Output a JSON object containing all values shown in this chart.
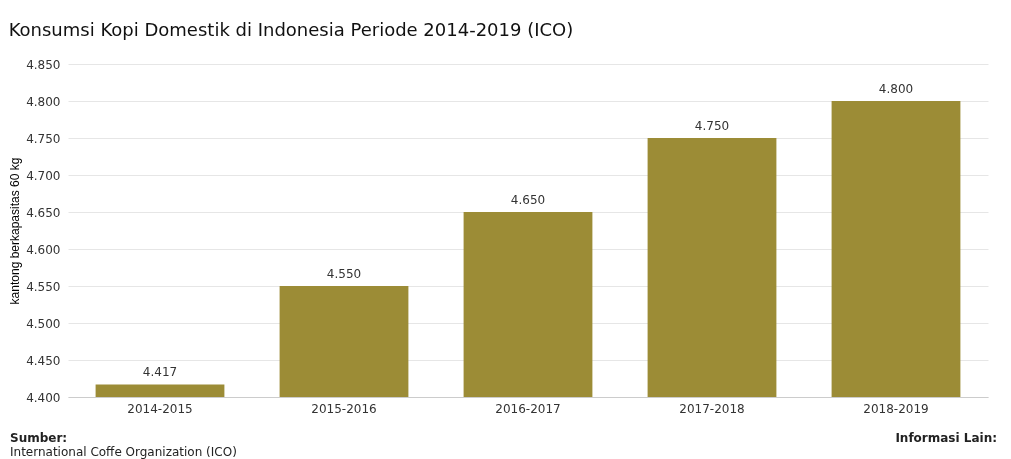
{
  "chart_data": {
    "type": "bar",
    "title": "Konsumsi Kopi Domestik di Indonesia Periode 2014-2019 (ICO)",
    "ylabel": "kantong berkapasitas 60 kg",
    "categories": [
      "2014-2015",
      "2015-2016",
      "2016-2017",
      "2017-2018",
      "2018-2019"
    ],
    "values": [
      4417,
      4550,
      4650,
      4750,
      4800
    ],
    "value_labels": [
      "4.417",
      "4.550",
      "4.650",
      "4.750",
      "4.800"
    ],
    "color": "#9c8c36",
    "ylim": [
      4400,
      4850
    ],
    "yticks": [
      {
        "value": 4400,
        "label": "4.400"
      },
      {
        "value": 4450,
        "label": "4.450"
      },
      {
        "value": 4500,
        "label": "4.500"
      },
      {
        "value": 4550,
        "label": "4.550"
      },
      {
        "value": 4600,
        "label": "4.600"
      },
      {
        "value": 4650,
        "label": "4.650"
      },
      {
        "value": 4700,
        "label": "4.700"
      },
      {
        "value": 4750,
        "label": "4.750"
      },
      {
        "value": 4800,
        "label": "4.800"
      },
      {
        "value": 4850,
        "label": "4.850"
      }
    ],
    "grid": "y",
    "annotations": [
      "Sumber:",
      "International Coffe Organization (ICO)",
      "Informasi Lain:"
    ]
  }
}
